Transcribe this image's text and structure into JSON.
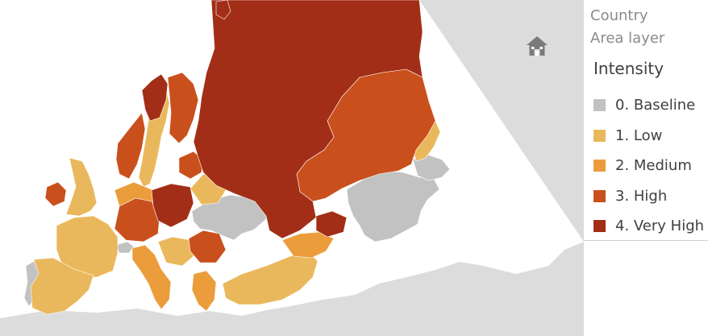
{
  "legend": {
    "layers": [
      "Country",
      "Area layer"
    ],
    "title": "Intensity",
    "items": [
      {
        "label": "0. Baseline",
        "color": "#c2c2c2"
      },
      {
        "label": "1. Low",
        "color": "#eab85c"
      },
      {
        "label": "2. Medium",
        "color": "#eb9d3c"
      },
      {
        "label": "3. High",
        "color": "#c9501c"
      },
      {
        "label": "4. Very High",
        "color": "#a32e17"
      }
    ]
  },
  "map": {
    "land_color": "#dcdcdc",
    "water_color": "#ffffff",
    "controls": {
      "home_icon": "home-icon"
    }
  }
}
